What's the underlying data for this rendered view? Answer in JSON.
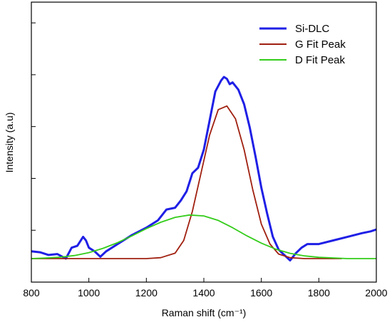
{
  "chart_data": {
    "type": "line",
    "xlabel": "Raman shift (cm⁻¹)",
    "ylabel": "Intensity (a.u)",
    "xlim": [
      800,
      2000
    ],
    "ylim": [
      0,
      1.07
    ],
    "x_ticks": [
      800,
      1000,
      1200,
      1400,
      1600,
      1800,
      2000
    ],
    "y_tick_labels_shown": false,
    "grid": false,
    "legend_position": "top-right",
    "series": [
      {
        "name": "Si-DLC",
        "color": "#1f1fe6",
        "x": [
          800,
          830,
          860,
          890,
          920,
          940,
          960,
          980,
          990,
          1000,
          1020,
          1040,
          1060,
          1100,
          1150,
          1200,
          1240,
          1270,
          1300,
          1320,
          1340,
          1360,
          1380,
          1400,
          1420,
          1440,
          1460,
          1470,
          1480,
          1490,
          1500,
          1520,
          1540,
          1560,
          1580,
          1600,
          1620,
          1640,
          1660,
          1680,
          1700,
          1720,
          1740,
          1760,
          1800,
          1850,
          1900,
          1950,
          1980,
          2000
        ],
        "y": [
          0.04,
          0.035,
          0.02,
          0.025,
          0.0,
          0.06,
          0.07,
          0.12,
          0.1,
          0.06,
          0.04,
          0.01,
          0.04,
          0.08,
          0.13,
          0.17,
          0.21,
          0.27,
          0.28,
          0.32,
          0.37,
          0.47,
          0.5,
          0.6,
          0.76,
          0.92,
          0.98,
          1.0,
          0.99,
          0.96,
          0.97,
          0.93,
          0.85,
          0.72,
          0.56,
          0.39,
          0.25,
          0.12,
          0.05,
          0.02,
          -0.01,
          0.03,
          0.06,
          0.08,
          0.08,
          0.1,
          0.12,
          0.14,
          0.15,
          0.16
        ]
      },
      {
        "name": "G Fit Peak",
        "color": "#a02010",
        "x": [
          800,
          900,
          1000,
          1100,
          1200,
          1250,
          1300,
          1330,
          1360,
          1390,
          1420,
          1450,
          1480,
          1510,
          1540,
          1570,
          1600,
          1630,
          1660,
          1700,
          1750,
          1800,
          1880
        ],
        "y": [
          0.0,
          0.0,
          0.0,
          0.0,
          0.0,
          0.005,
          0.03,
          0.1,
          0.26,
          0.47,
          0.68,
          0.82,
          0.84,
          0.77,
          0.6,
          0.38,
          0.19,
          0.08,
          0.025,
          0.005,
          0.0,
          0.0,
          0.0
        ]
      },
      {
        "name": "D Fit Peak",
        "color": "#33cc1a",
        "x": [
          800,
          850,
          900,
          950,
          1000,
          1050,
          1100,
          1150,
          1200,
          1250,
          1300,
          1350,
          1400,
          1450,
          1500,
          1550,
          1600,
          1650,
          1700,
          1750,
          1800,
          1900,
          2000
        ],
        "y": [
          0.0,
          0.003,
          0.008,
          0.017,
          0.033,
          0.057,
          0.088,
          0.125,
          0.165,
          0.2,
          0.227,
          0.24,
          0.235,
          0.21,
          0.17,
          0.125,
          0.085,
          0.052,
          0.029,
          0.015,
          0.007,
          0.0,
          0.0
        ]
      }
    ]
  }
}
